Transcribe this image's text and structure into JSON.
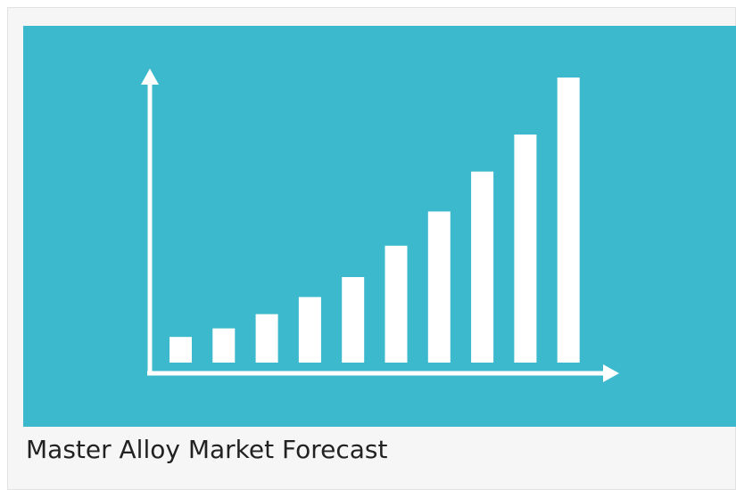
{
  "card": {
    "caption": "Master Alloy Market Forecast"
  },
  "banner": {
    "background_color": "#3db9ce",
    "mark_color": "#ffffff"
  },
  "chart_data": {
    "type": "bar",
    "title": "",
    "xlabel": "",
    "ylabel": "",
    "values": [
      9,
      12,
      17,
      23,
      30,
      41,
      53,
      67,
      80,
      100
    ],
    "ylim": [
      0,
      100
    ],
    "grid": false,
    "axis_arrows": true
  }
}
